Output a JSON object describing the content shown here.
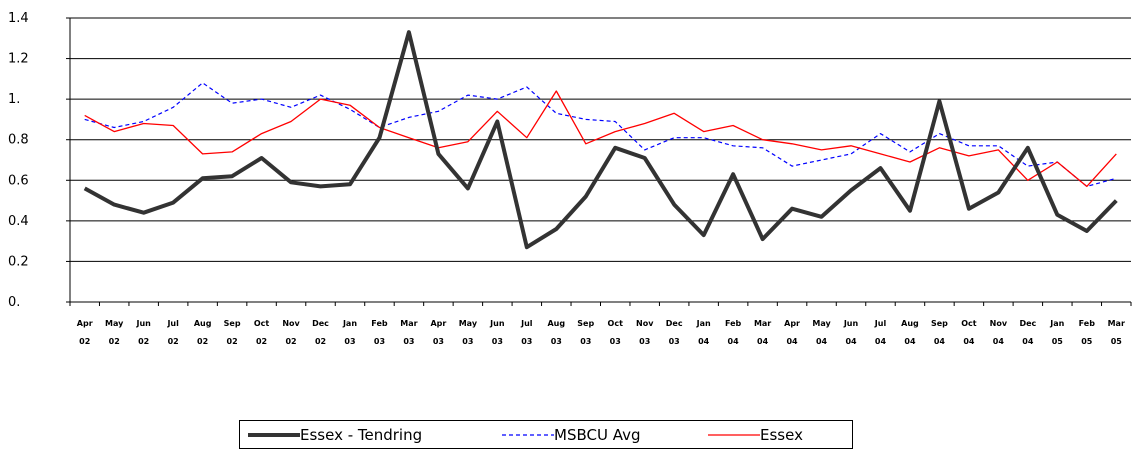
{
  "chart_data": {
    "type": "line",
    "title": "",
    "xlabel": "",
    "ylabel": "",
    "ylim": [
      0,
      1.4
    ],
    "y_ticks": [
      "0.",
      "0.2",
      "0.4",
      "0.6",
      "0.8",
      "1.",
      "1.2",
      "1.4"
    ],
    "grid": true,
    "legend_position": "bottom",
    "x": [
      {
        "month": "Apr",
        "year": "02"
      },
      {
        "month": "May",
        "year": "02"
      },
      {
        "month": "Jun",
        "year": "02"
      },
      {
        "month": "Jul",
        "year": "02"
      },
      {
        "month": "Aug",
        "year": "02"
      },
      {
        "month": "Sep",
        "year": "02"
      },
      {
        "month": "Oct",
        "year": "02"
      },
      {
        "month": "Nov",
        "year": "02"
      },
      {
        "month": "Dec",
        "year": "02"
      },
      {
        "month": "Jan",
        "year": "03"
      },
      {
        "month": "Feb",
        "year": "03"
      },
      {
        "month": "Mar",
        "year": "03"
      },
      {
        "month": "Apr",
        "year": "03"
      },
      {
        "month": "May",
        "year": "03"
      },
      {
        "month": "Jun",
        "year": "03"
      },
      {
        "month": "Jul",
        "year": "03"
      },
      {
        "month": "Aug",
        "year": "03"
      },
      {
        "month": "Sep",
        "year": "03"
      },
      {
        "month": "Oct",
        "year": "03"
      },
      {
        "month": "Nov",
        "year": "03"
      },
      {
        "month": "Dec",
        "year": "03"
      },
      {
        "month": "Jan",
        "year": "04"
      },
      {
        "month": "Feb",
        "year": "04"
      },
      {
        "month": "Mar",
        "year": "04"
      },
      {
        "month": "Apr",
        "year": "04"
      },
      {
        "month": "May",
        "year": "04"
      },
      {
        "month": "Jun",
        "year": "04"
      },
      {
        "month": "Jul",
        "year": "04"
      },
      {
        "month": "Aug",
        "year": "04"
      },
      {
        "month": "Sep",
        "year": "04"
      },
      {
        "month": "Oct",
        "year": "04"
      },
      {
        "month": "Nov",
        "year": "04"
      },
      {
        "month": "Dec",
        "year": "04"
      },
      {
        "month": "Jan",
        "year": "05"
      },
      {
        "month": "Feb",
        "year": "05"
      },
      {
        "month": "Mar",
        "year": "05"
      }
    ],
    "series": [
      {
        "name": "Essex - Tendring",
        "color": "#333333",
        "style": "solid-thick",
        "values": [
          0.56,
          0.48,
          0.44,
          0.49,
          0.61,
          0.62,
          0.71,
          0.59,
          0.57,
          0.58,
          0.81,
          1.33,
          0.73,
          0.56,
          0.89,
          0.27,
          0.36,
          0.52,
          0.76,
          0.71,
          0.48,
          0.33,
          0.63,
          0.31,
          0.46,
          0.42,
          0.55,
          0.66,
          0.45,
          0.99,
          0.46,
          0.54,
          0.76,
          0.43,
          0.35,
          0.5
        ]
      },
      {
        "name": "MSBCU Avg",
        "color": "#0000ff",
        "style": "dashed",
        "values": [
          0.9,
          0.86,
          0.89,
          0.96,
          1.08,
          0.98,
          1.0,
          0.96,
          1.02,
          0.95,
          0.86,
          0.91,
          0.94,
          1.02,
          1.0,
          1.06,
          0.93,
          0.9,
          0.89,
          0.75,
          0.81,
          0.81,
          0.77,
          0.76,
          0.67,
          0.7,
          0.73,
          0.83,
          0.74,
          0.83,
          0.77,
          0.77,
          0.67,
          0.69,
          0.57,
          0.61
        ]
      },
      {
        "name": "Essex",
        "color": "#ff0000",
        "style": "solid-thin",
        "values": [
          0.92,
          0.84,
          0.88,
          0.87,
          0.73,
          0.74,
          0.83,
          0.89,
          1.0,
          0.97,
          0.86,
          0.81,
          0.76,
          0.79,
          0.94,
          0.81,
          1.04,
          0.78,
          0.84,
          0.88,
          0.93,
          0.84,
          0.87,
          0.8,
          0.78,
          0.75,
          0.77,
          0.73,
          0.69,
          0.76,
          0.72,
          0.75,
          0.6,
          0.69,
          0.57,
          0.73
        ]
      }
    ]
  }
}
